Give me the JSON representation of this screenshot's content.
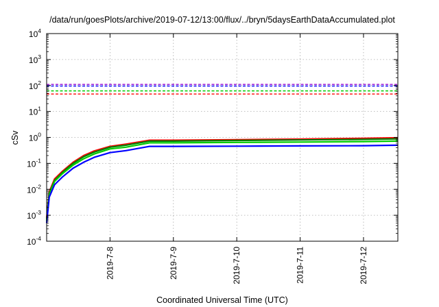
{
  "chart_data": {
    "type": "line",
    "title": "/data/run/goesPlots/archive/2019-07-12/13:00/flux/../bryn/5daysEarthDataAccumulated.plot",
    "xlabel": "Coordinated Universal Time (UTC)",
    "ylabel": "cSv",
    "yscale": "log",
    "ylim": [
      0.0001,
      10000
    ],
    "xlim": [
      "2019-07-07 00:00",
      "2019-07-12 13:00"
    ],
    "grid": true,
    "x_ticks": [
      "2019-7-8",
      "2019-7-9",
      "2019-7-10",
      "2019-7-11",
      "2019-7-12"
    ],
    "y_ticks": [
      {
        "base": "10",
        "exp": "-4"
      },
      {
        "base": "10",
        "exp": "-3"
      },
      {
        "base": "10",
        "exp": "-2"
      },
      {
        "base": "10",
        "exp": "-1"
      },
      {
        "base": "10",
        "exp": "0"
      },
      {
        "base": "10",
        "exp": "1"
      },
      {
        "base": "10",
        "exp": "2"
      },
      {
        "base": "10",
        "exp": "3"
      },
      {
        "base": "10",
        "exp": "4"
      }
    ],
    "thresholds": [
      {
        "value": 110,
        "color": "#9400d3"
      },
      {
        "value": 95,
        "color": "#0000ff"
      },
      {
        "value": 62,
        "color": "#00cc00"
      },
      {
        "value": 47,
        "color": "#ff0000"
      }
    ],
    "series": [
      {
        "color": "#ff0000",
        "x": [
          "2019-07-07 00:00",
          "2019-07-07 01:00",
          "2019-07-07 03:00",
          "2019-07-07 06:00",
          "2019-07-07 10:00",
          "2019-07-07 14:00",
          "2019-07-07 18:00",
          "2019-07-08 00:00",
          "2019-07-08 06:00",
          "2019-07-08 15:00",
          "2019-07-09 00:00",
          "2019-07-10 00:00",
          "2019-07-11 00:00",
          "2019-07-12 00:00",
          "2019-07-12 13:00"
        ],
        "values": [
          0.0008,
          0.008,
          0.025,
          0.05,
          0.11,
          0.2,
          0.3,
          0.45,
          0.55,
          0.78,
          0.78,
          0.82,
          0.86,
          0.92,
          0.97
        ]
      },
      {
        "color": "#008000",
        "x": [
          "2019-07-07 00:00",
          "2019-07-07 01:00",
          "2019-07-07 03:00",
          "2019-07-07 06:00",
          "2019-07-07 10:00",
          "2019-07-07 14:00",
          "2019-07-07 18:00",
          "2019-07-08 00:00",
          "2019-07-08 06:00",
          "2019-07-08 15:00",
          "2019-07-09 00:00",
          "2019-07-10 00:00",
          "2019-07-11 00:00",
          "2019-07-12 00:00",
          "2019-07-12 13:00"
        ],
        "values": [
          0.0007,
          0.007,
          0.022,
          0.045,
          0.1,
          0.18,
          0.27,
          0.42,
          0.5,
          0.72,
          0.72,
          0.76,
          0.8,
          0.84,
          0.88
        ]
      },
      {
        "color": "#00cc00",
        "x": [
          "2019-07-07 00:00",
          "2019-07-07 01:00",
          "2019-07-07 03:00",
          "2019-07-07 06:00",
          "2019-07-07 10:00",
          "2019-07-07 14:00",
          "2019-07-07 18:00",
          "2019-07-08 00:00",
          "2019-07-08 06:00",
          "2019-07-08 15:00",
          "2019-07-09 00:00",
          "2019-07-10 00:00",
          "2019-07-11 00:00",
          "2019-07-12 00:00",
          "2019-07-12 13:00"
        ],
        "values": [
          0.0006,
          0.006,
          0.02,
          0.04,
          0.085,
          0.15,
          0.23,
          0.36,
          0.42,
          0.62,
          0.62,
          0.64,
          0.66,
          0.69,
          0.72
        ]
      },
      {
        "color": "#0000ff",
        "x": [
          "2019-07-07 00:00",
          "2019-07-07 01:00",
          "2019-07-07 03:00",
          "2019-07-07 06:00",
          "2019-07-07 10:00",
          "2019-07-07 14:00",
          "2019-07-07 18:00",
          "2019-07-08 00:00",
          "2019-07-08 06:00",
          "2019-07-08 15:00",
          "2019-07-09 00:00",
          "2019-07-10 00:00",
          "2019-07-11 00:00",
          "2019-07-12 00:00",
          "2019-07-12 13:00"
        ],
        "values": [
          0.0005,
          0.005,
          0.015,
          0.03,
          0.065,
          0.11,
          0.17,
          0.26,
          0.31,
          0.45,
          0.45,
          0.46,
          0.47,
          0.48,
          0.5
        ]
      }
    ]
  }
}
